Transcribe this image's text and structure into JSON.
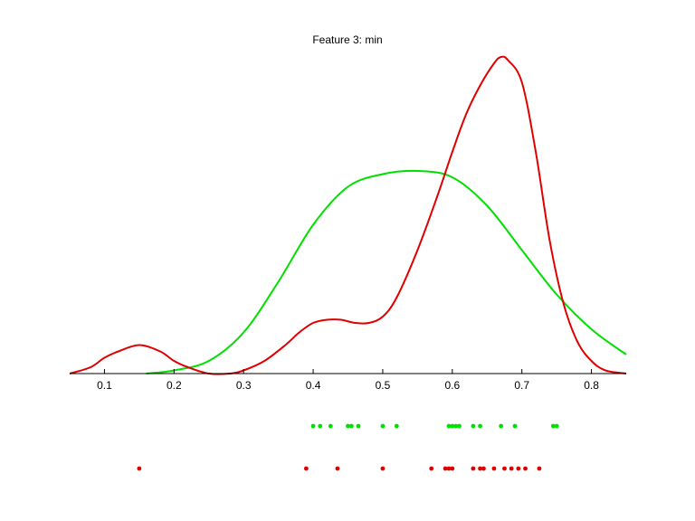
{
  "chart_data": {
    "type": "line",
    "title": "Feature 3: min",
    "xlabel": "",
    "ylabel": "",
    "xlim": [
      0.05,
      0.85
    ],
    "ylim": [
      0,
      1
    ],
    "x_ticks": [
      "0.1",
      "0.2",
      "0.3",
      "0.4",
      "0.5",
      "0.6",
      "0.7",
      "0.8"
    ],
    "grid": false,
    "legend": "none",
    "series": [
      {
        "color": "#00e000",
        "x": [
          0.16,
          0.2,
          0.25,
          0.3,
          0.35,
          0.4,
          0.45,
          0.5,
          0.55,
          0.6,
          0.65,
          0.7,
          0.75,
          0.8,
          0.85
        ],
        "y": [
          0.0,
          0.01,
          0.04,
          0.13,
          0.29,
          0.47,
          0.59,
          0.63,
          0.64,
          0.62,
          0.53,
          0.39,
          0.25,
          0.14,
          0.06
        ]
      },
      {
        "color": "#e00000",
        "x": [
          0.05,
          0.08,
          0.1,
          0.12,
          0.15,
          0.18,
          0.2,
          0.22,
          0.25,
          0.28,
          0.3,
          0.33,
          0.36,
          0.38,
          0.4,
          0.42,
          0.44,
          0.46,
          0.48,
          0.5,
          0.52,
          0.55,
          0.58,
          0.6,
          0.62,
          0.64,
          0.66,
          0.67,
          0.68,
          0.7,
          0.72,
          0.74,
          0.76,
          0.78,
          0.8,
          0.82,
          0.85
        ],
        "y": [
          0.0,
          0.02,
          0.05,
          0.07,
          0.09,
          0.07,
          0.04,
          0.02,
          0.0,
          0.0,
          0.01,
          0.04,
          0.09,
          0.13,
          0.16,
          0.17,
          0.17,
          0.16,
          0.16,
          0.18,
          0.24,
          0.39,
          0.57,
          0.7,
          0.82,
          0.91,
          0.98,
          1.0,
          0.99,
          0.92,
          0.7,
          0.42,
          0.22,
          0.1,
          0.04,
          0.01,
          0.0
        ]
      }
    ],
    "rugs": [
      {
        "color": "#00e000",
        "values": [
          0.4,
          0.41,
          0.425,
          0.45,
          0.455,
          0.465,
          0.5,
          0.52,
          0.595,
          0.6,
          0.605,
          0.61,
          0.63,
          0.64,
          0.67,
          0.69,
          0.745,
          0.75
        ]
      },
      {
        "color": "#e00000",
        "values": [
          0.15,
          0.39,
          0.435,
          0.5,
          0.57,
          0.59,
          0.595,
          0.6,
          0.63,
          0.64,
          0.645,
          0.66,
          0.675,
          0.685,
          0.695,
          0.705,
          0.725
        ]
      }
    ]
  }
}
